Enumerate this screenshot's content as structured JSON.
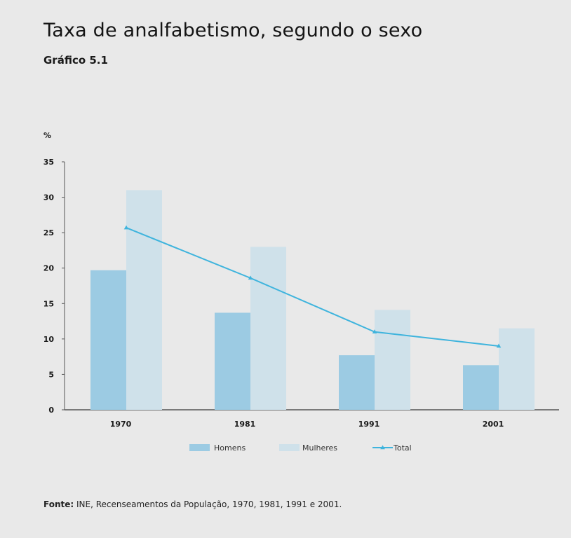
{
  "header": {
    "title": "Taxa de analfabetismo, segundo o sexo",
    "subtitle": "Gráfico 5.1"
  },
  "source": {
    "label": "Fonte:",
    "text": " INE, Recenseamentos da População, 1970, 1981, 1991 e 2001."
  },
  "colors": {
    "homens": "#9ccbe3",
    "mulheres": "#cfe1ea",
    "total": "#3fb4dd",
    "axis": "#555555"
  },
  "chart_data": {
    "type": "bar",
    "title": "Taxa de analfabetismo, segundo o sexo",
    "ylabel": "%",
    "xlabel": "",
    "ylim": [
      0,
      35
    ],
    "yticks": [
      "0",
      "5",
      "10",
      "15",
      "20",
      "25",
      "30",
      "35"
    ],
    "categories": [
      "1970",
      "1981",
      "1991",
      "2001"
    ],
    "series": [
      {
        "name": "Homens",
        "kind": "bar",
        "values": [
          19.7,
          13.7,
          7.7,
          6.3
        ]
      },
      {
        "name": "Mulheres",
        "kind": "bar",
        "values": [
          31.0,
          23.0,
          14.1,
          11.5
        ]
      },
      {
        "name": "Total",
        "kind": "line",
        "values": [
          25.7,
          18.6,
          11.0,
          9.0
        ]
      }
    ],
    "legend": "bottom",
    "grid": false
  }
}
